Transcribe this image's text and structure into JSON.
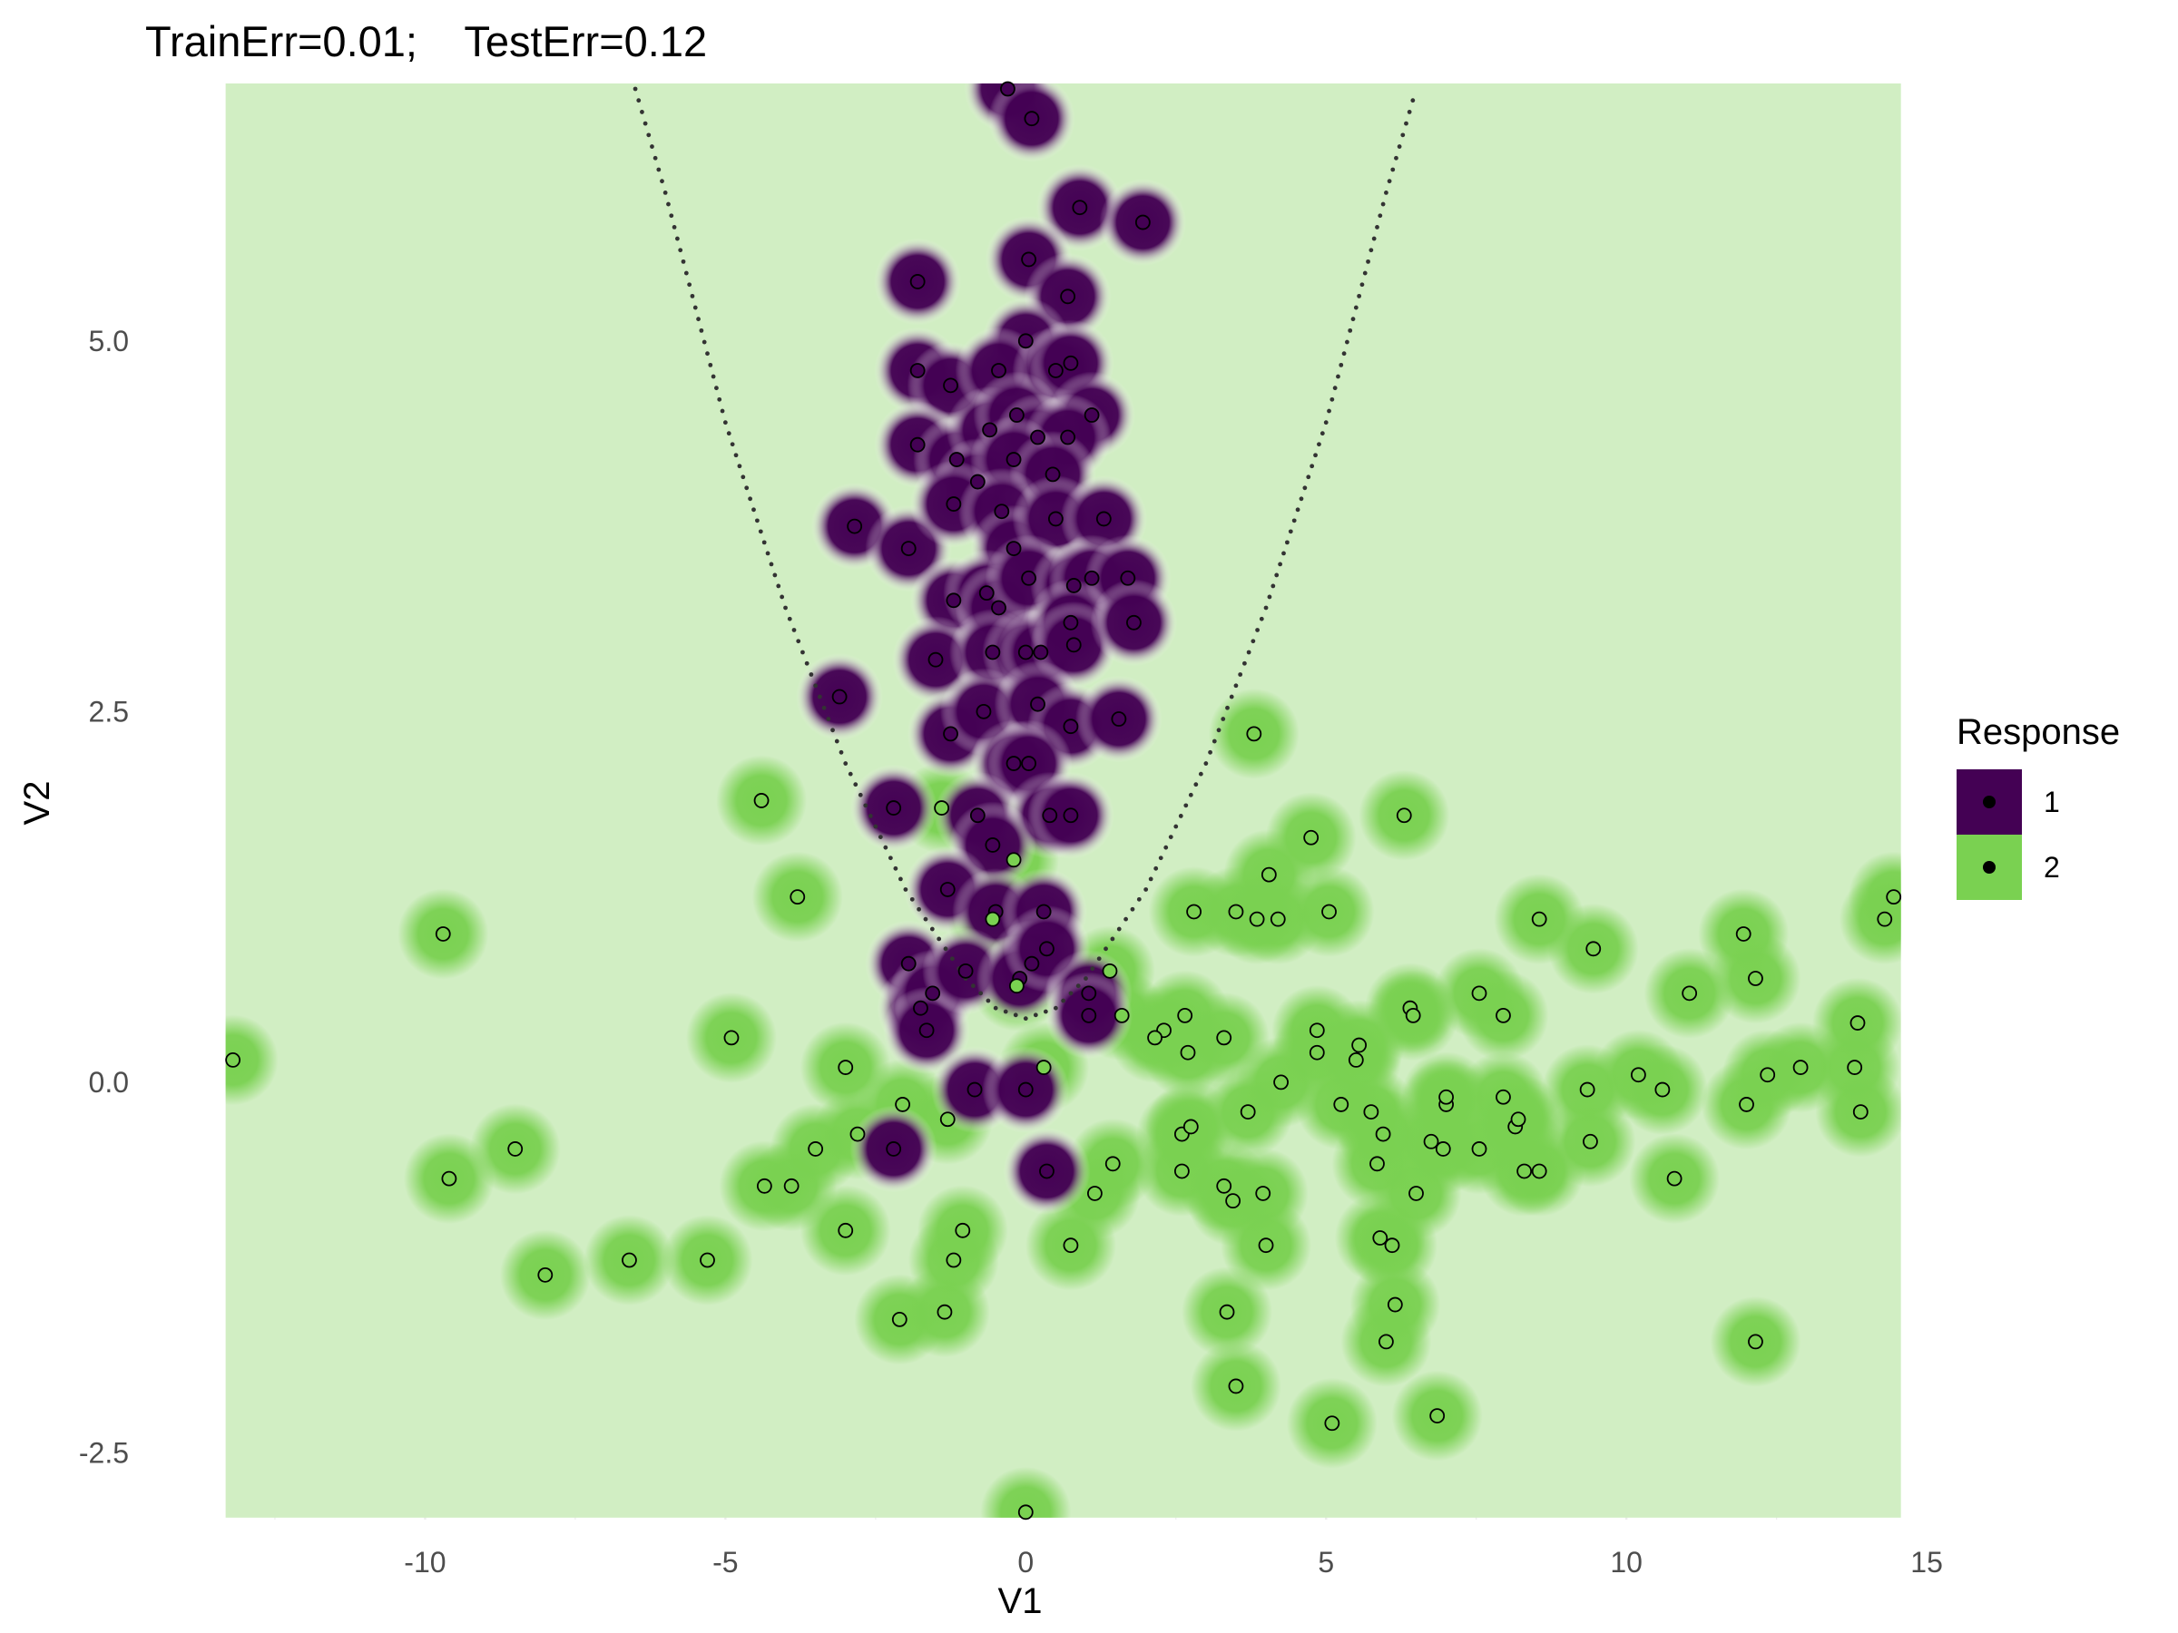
{
  "chart_data": {
    "type": "scatter",
    "title": "TrainErr=0.01;    TestErr=0.12",
    "xlabel": "V1",
    "ylabel": "V2",
    "xlim": [
      -13.3,
      14.5
    ],
    "ylim": [
      -2.95,
      6.7
    ],
    "x_ticks": [
      -10,
      -5,
      0,
      5,
      10,
      15
    ],
    "x_tick_labels": [
      "-10",
      "-5",
      "0",
      "5",
      "10",
      "15"
    ],
    "y_ticks": [
      -2.5,
      0,
      2.5,
      5
    ],
    "y_tick_labels": [
      "-2.5",
      "0.0",
      "2.5",
      "5.0"
    ],
    "grid": true,
    "legend": {
      "title": "Response",
      "placement": "right",
      "entries": [
        {
          "label": "1",
          "color": "#440154"
        },
        {
          "label": "2",
          "color": "#7AD151"
        }
      ]
    },
    "colors": {
      "class1": "#440154",
      "class2": "#7AD151",
      "background": "#D1EEC3"
    },
    "series": [
      {
        "name": "1",
        "points": [
          [
            -0.3,
            6.7
          ],
          [
            0.1,
            6.5
          ],
          [
            0.9,
            5.9
          ],
          [
            1.95,
            5.8
          ],
          [
            -1.8,
            5.4
          ],
          [
            0.05,
            5.55
          ],
          [
            0.7,
            5.3
          ],
          [
            0.0,
            5.0
          ],
          [
            -1.8,
            4.8
          ],
          [
            -1.25,
            4.7
          ],
          [
            -0.45,
            4.8
          ],
          [
            0.5,
            4.8
          ],
          [
            0.75,
            4.85
          ],
          [
            1.1,
            4.5
          ],
          [
            -1.8,
            4.3
          ],
          [
            -1.15,
            4.2
          ],
          [
            -0.6,
            4.4
          ],
          [
            -0.15,
            4.5
          ],
          [
            0.2,
            4.35
          ],
          [
            0.7,
            4.35
          ],
          [
            -0.8,
            4.05
          ],
          [
            -0.2,
            4.2
          ],
          [
            0.45,
            4.1
          ],
          [
            -2.85,
            3.75
          ],
          [
            -1.95,
            3.6
          ],
          [
            -1.2,
            3.9
          ],
          [
            -0.4,
            3.85
          ],
          [
            -0.2,
            3.6
          ],
          [
            0.5,
            3.8
          ],
          [
            1.3,
            3.8
          ],
          [
            -1.2,
            3.25
          ],
          [
            -0.65,
            3.3
          ],
          [
            -0.45,
            3.2
          ],
          [
            0.05,
            3.4
          ],
          [
            0.8,
            3.35
          ],
          [
            1.1,
            3.4
          ],
          [
            1.7,
            3.4
          ],
          [
            -1.5,
            2.85
          ],
          [
            -0.55,
            2.9
          ],
          [
            0.0,
            2.9
          ],
          [
            0.25,
            2.9
          ],
          [
            0.75,
            3.1
          ],
          [
            0.8,
            2.95
          ],
          [
            1.8,
            3.1
          ],
          [
            -3.1,
            2.6
          ],
          [
            -1.25,
            2.35
          ],
          [
            -0.7,
            2.5
          ],
          [
            0.2,
            2.55
          ],
          [
            0.75,
            2.4
          ],
          [
            1.55,
            2.45
          ],
          [
            -0.2,
            2.15
          ],
          [
            0.05,
            2.15
          ],
          [
            -2.2,
            1.85
          ],
          [
            -0.8,
            1.8
          ],
          [
            0.4,
            1.8
          ],
          [
            0.75,
            1.8
          ],
          [
            -0.55,
            1.6
          ],
          [
            -1.3,
            1.3
          ],
          [
            -0.5,
            1.15
          ],
          [
            0.3,
            1.15
          ],
          [
            -1.95,
            0.8
          ],
          [
            -1.75,
            0.5
          ],
          [
            -1.55,
            0.6
          ],
          [
            -1.65,
            0.35
          ],
          [
            -1.0,
            0.75
          ],
          [
            0.1,
            0.8
          ],
          [
            -0.1,
            0.7
          ],
          [
            0.35,
            0.9
          ],
          [
            1.05,
            0.6
          ],
          [
            1.05,
            0.45
          ],
          [
            -0.85,
            -0.05
          ],
          [
            0.0,
            -0.05
          ],
          [
            -2.2,
            -0.45
          ],
          [
            0.35,
            -0.6
          ]
        ]
      },
      {
        "name": "2",
        "points": [
          [
            -13.2,
            0.15
          ],
          [
            -9.7,
            1.0
          ],
          [
            -9.6,
            -0.65
          ],
          [
            -8.5,
            -0.45
          ],
          [
            -8.0,
            -1.3
          ],
          [
            -6.6,
            -1.2
          ],
          [
            -5.3,
            -1.2
          ],
          [
            -4.9,
            0.3
          ],
          [
            -4.4,
            1.9
          ],
          [
            -4.35,
            -0.7
          ],
          [
            -3.9,
            -0.7
          ],
          [
            -3.8,
            1.25
          ],
          [
            -3.5,
            -0.45
          ],
          [
            -3.0,
            0.1
          ],
          [
            -3.0,
            -1.0
          ],
          [
            -2.8,
            -0.35
          ],
          [
            -2.05,
            -0.15
          ],
          [
            -2.1,
            -1.6
          ],
          [
            -1.4,
            1.85
          ],
          [
            -1.3,
            -0.25
          ],
          [
            -1.35,
            -1.55
          ],
          [
            -1.2,
            -1.2
          ],
          [
            -1.05,
            -1.0
          ],
          [
            -0.55,
            1.1
          ],
          [
            -0.2,
            1.5
          ],
          [
            -0.15,
            0.65
          ],
          [
            0.3,
            0.1
          ],
          [
            1.4,
            0.75
          ],
          [
            0.75,
            -1.1
          ],
          [
            1.15,
            -0.75
          ],
          [
            1.45,
            -0.55
          ],
          [
            1.6,
            0.45
          ],
          [
            2.3,
            0.35
          ],
          [
            2.15,
            0.3
          ],
          [
            2.6,
            -0.35
          ],
          [
            2.65,
            0.45
          ],
          [
            2.7,
            0.2
          ],
          [
            2.75,
            -0.3
          ],
          [
            2.6,
            -0.6
          ],
          [
            2.8,
            1.15
          ],
          [
            3.3,
            0.3
          ],
          [
            3.3,
            -0.7
          ],
          [
            3.35,
            -1.55
          ],
          [
            3.45,
            -0.8
          ],
          [
            3.5,
            -2.05
          ],
          [
            3.5,
            1.15
          ],
          [
            3.7,
            -0.2
          ],
          [
            3.8,
            2.35
          ],
          [
            3.85,
            1.1
          ],
          [
            3.95,
            -0.75
          ],
          [
            4.0,
            -1.1
          ],
          [
            4.05,
            1.4
          ],
          [
            4.2,
            1.1
          ],
          [
            4.25,
            0.0
          ],
          [
            4.75,
            1.65
          ],
          [
            4.85,
            0.35
          ],
          [
            4.85,
            0.2
          ],
          [
            5.05,
            1.15
          ],
          [
            5.1,
            -2.3
          ],
          [
            5.25,
            -0.15
          ],
          [
            5.5,
            0.15
          ],
          [
            5.55,
            0.25
          ],
          [
            5.75,
            -0.2
          ],
          [
            5.85,
            -0.55
          ],
          [
            5.9,
            -1.05
          ],
          [
            5.95,
            -0.35
          ],
          [
            6.0,
            -1.75
          ],
          [
            6.1,
            -1.1
          ],
          [
            6.15,
            -1.5
          ],
          [
            6.3,
            1.8
          ],
          [
            6.4,
            0.5
          ],
          [
            6.45,
            0.45
          ],
          [
            6.5,
            -0.75
          ],
          [
            6.75,
            -0.4
          ],
          [
            6.85,
            -2.25
          ],
          [
            6.95,
            -0.45
          ],
          [
            7.0,
            -0.15
          ],
          [
            7.0,
            -0.1
          ],
          [
            7.55,
            -0.45
          ],
          [
            7.55,
            0.6
          ],
          [
            7.95,
            -0.1
          ],
          [
            7.95,
            0.45
          ],
          [
            8.15,
            -0.3
          ],
          [
            8.2,
            -0.25
          ],
          [
            8.3,
            -0.6
          ],
          [
            8.55,
            1.1
          ],
          [
            8.55,
            -0.6
          ],
          [
            9.45,
            0.9
          ],
          [
            9.35,
            -0.05
          ],
          [
            9.4,
            -0.4
          ],
          [
            10.2,
            0.05
          ],
          [
            10.6,
            -0.05
          ],
          [
            10.8,
            -0.65
          ],
          [
            11.05,
            0.6
          ],
          [
            11.95,
            1.0
          ],
          [
            12.0,
            -0.15
          ],
          [
            12.15,
            0.7
          ],
          [
            12.15,
            -1.75
          ],
          [
            12.35,
            0.05
          ],
          [
            12.9,
            0.1
          ],
          [
            13.8,
            0.1
          ],
          [
            13.85,
            0.4
          ],
          [
            13.9,
            -0.2
          ],
          [
            14.3,
            1.1
          ],
          [
            14.45,
            1.25
          ],
          [
            0.0,
            -2.9
          ]
        ]
      }
    ],
    "boundary_curve": [
      [
        -6.5,
        6.7
      ],
      [
        -6.0,
        6.0
      ],
      [
        -5.0,
        4.45
      ],
      [
        -4.0,
        3.2
      ],
      [
        -3.0,
        2.15
      ],
      [
        -2.0,
        1.3
      ],
      [
        -1.0,
        0.7
      ],
      [
        -0.5,
        0.5
      ],
      [
        0.0,
        0.43
      ],
      [
        0.5,
        0.5
      ],
      [
        1.0,
        0.7
      ],
      [
        2.0,
        1.3
      ],
      [
        3.0,
        2.15
      ],
      [
        4.0,
        3.2
      ],
      [
        5.0,
        4.45
      ],
      [
        6.0,
        6.0
      ],
      [
        6.5,
        6.7
      ]
    ]
  }
}
